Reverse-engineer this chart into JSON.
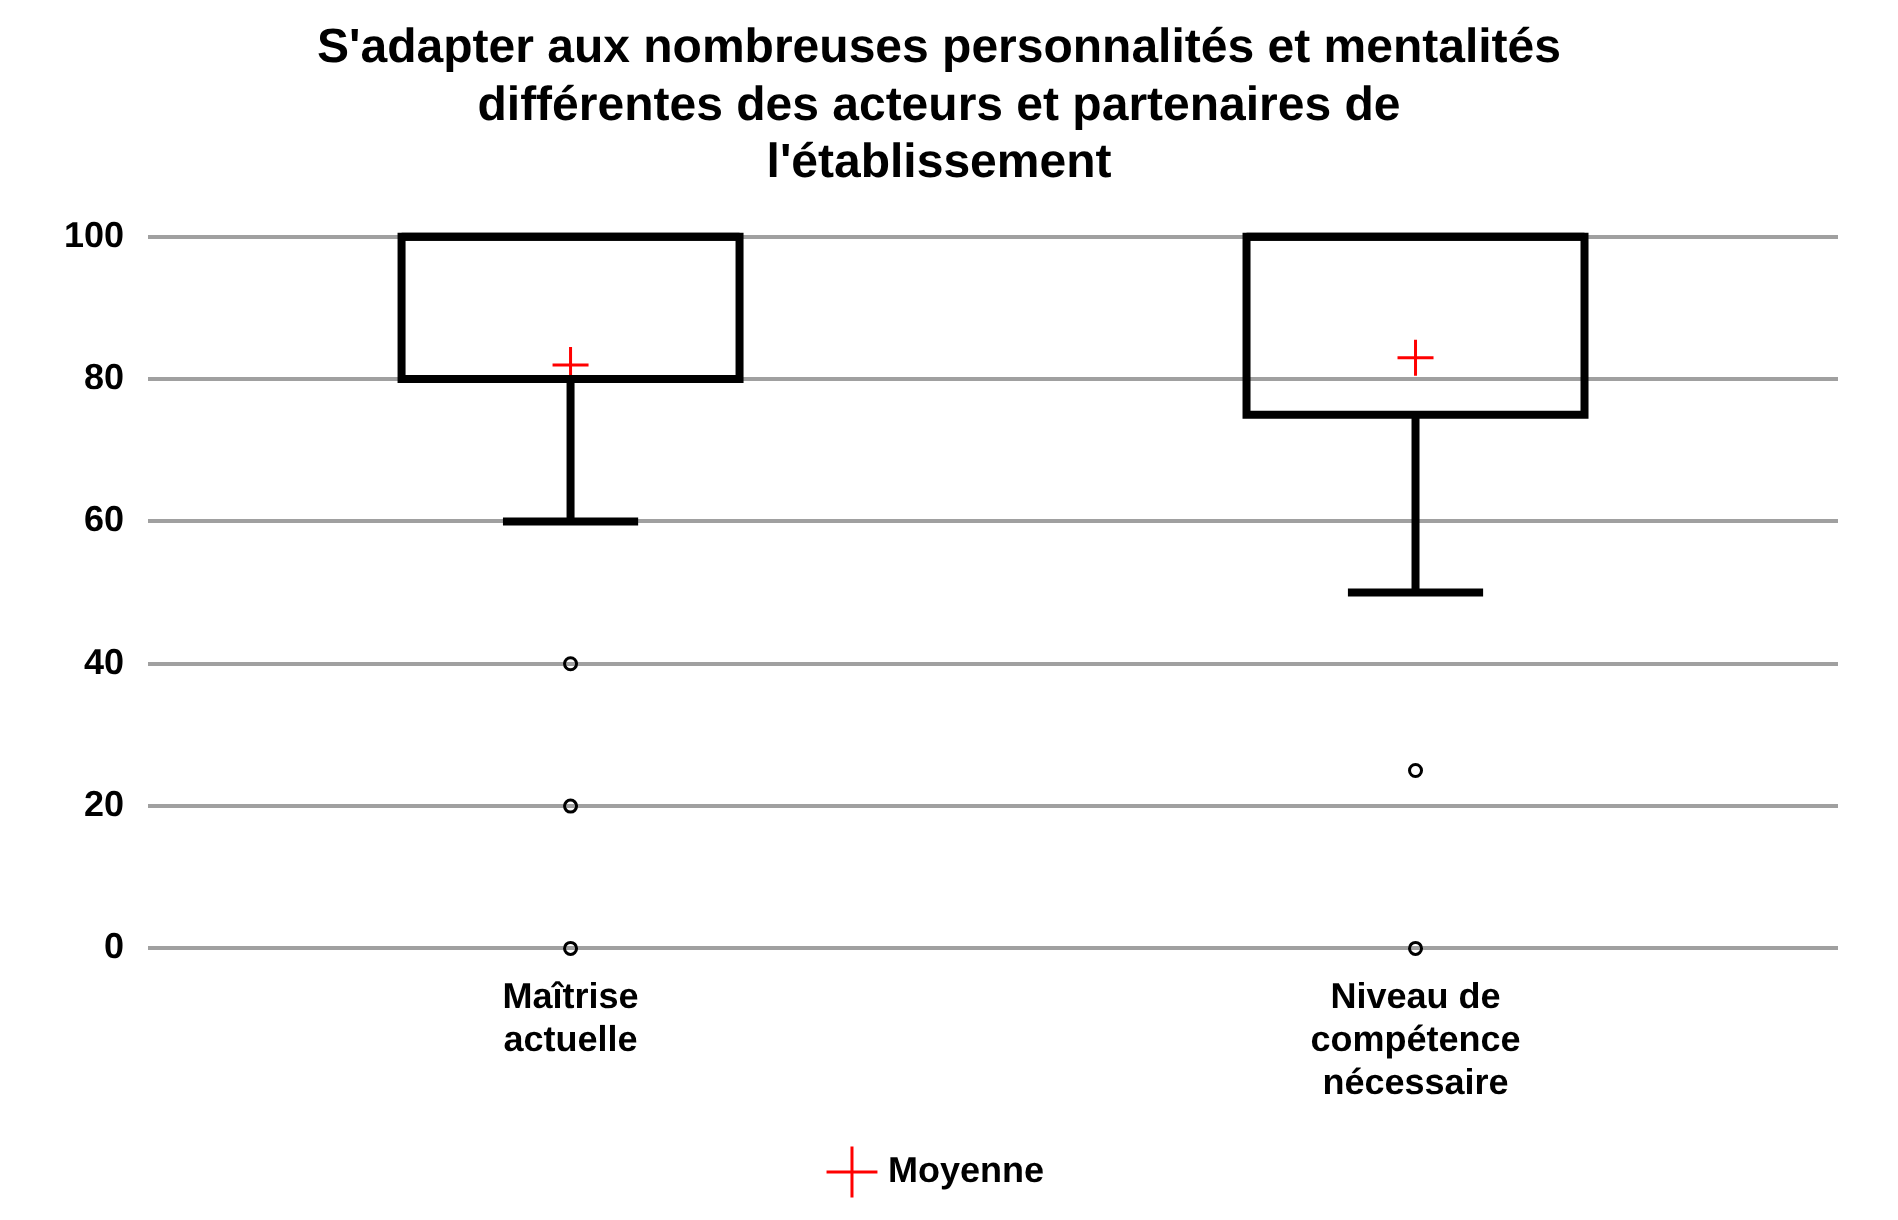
{
  "chart_data": {
    "type": "box",
    "title": "S'adapter aux nombreuses personnalités et mentalités différentes des acteurs et partenaires de l'établissement",
    "categories": [
      "Maîtrise actuelle",
      "Niveau de compétence nécessaire"
    ],
    "boxes": [
      {
        "low": 60,
        "q1": 80,
        "median": 100,
        "q3": 100,
        "high": 100,
        "outliers": [
          40,
          20,
          0
        ]
      },
      {
        "low": 50,
        "q1": 75,
        "median": 100,
        "q3": 100,
        "high": 100,
        "outliers": [
          25,
          0
        ]
      }
    ],
    "series": [
      {
        "name": "Moyenne",
        "type": "scatter",
        "color": "#ff0000",
        "marker": "cross",
        "x": [
          "Maîtrise actuelle",
          "Niveau de compétence nécessaire"
        ],
        "values": [
          82,
          83
        ]
      }
    ],
    "ylim": [
      0,
      100
    ],
    "yticks": [
      0,
      20,
      40,
      60,
      80,
      100
    ],
    "grid": "y",
    "legend": "bottom"
  }
}
